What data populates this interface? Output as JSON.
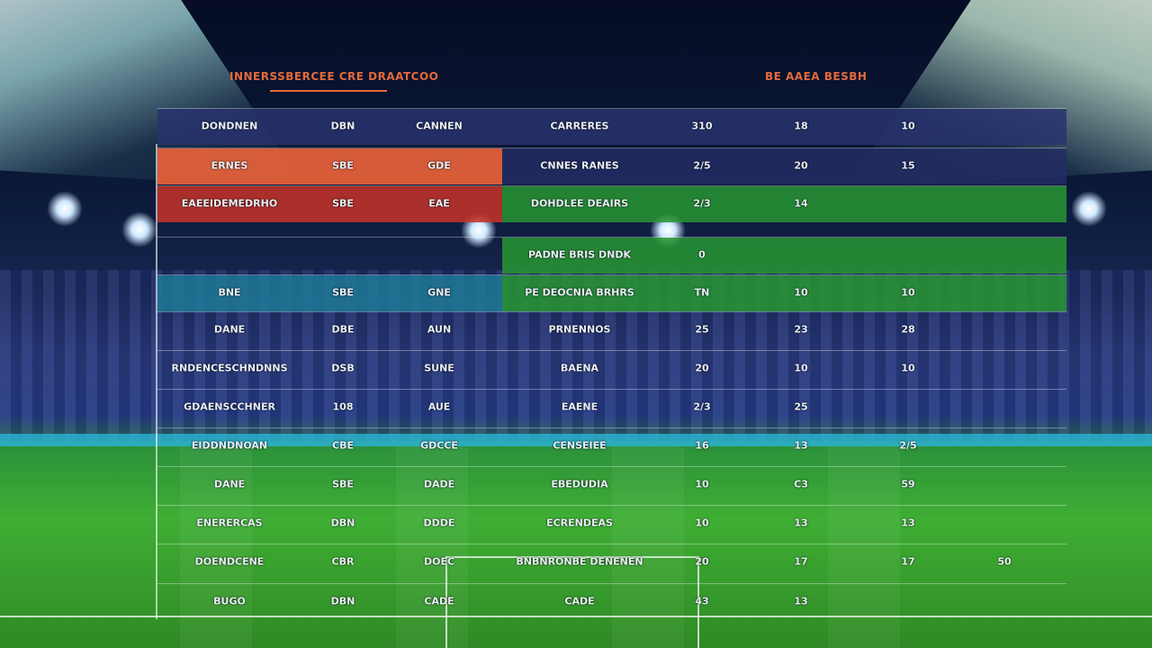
{
  "header": {
    "left_title": "INNERSSBERCEE CRE DRAATCOO",
    "right_title": "BE AAEA BESBH"
  },
  "table": {
    "rows": [
      [
        "DONDNEN",
        "DBN",
        "CANNEN",
        "CARRERES",
        "310",
        "18",
        "10"
      ],
      [
        "ERNES",
        "SBE",
        "GDE",
        "CNNES RANES",
        "2/5",
        "20",
        "15"
      ],
      [
        "EAEEIDEMEDRHO",
        "SBE",
        "EAE",
        "DOHDLEE DEAIRS",
        "2/3",
        "14",
        null
      ],
      [
        null,
        null,
        null,
        "PADNE BRIS DNDK",
        "0",
        null,
        null
      ],
      [
        "BNE",
        "SBE",
        "GNE",
        "PE DEOCNIA BRHRS",
        "TN",
        "10",
        "10"
      ],
      [
        "DANE",
        "DBE",
        "AUN",
        "PRNENNOS",
        "25",
        "23",
        "28"
      ],
      [
        "RNDENCESCHNDNNS",
        "DSB",
        "SUNE",
        "BAENA",
        "20",
        "10",
        "10"
      ],
      [
        "GDAENSCCHNER",
        "108",
        "AUE",
        "EAENE",
        "2/3",
        "25",
        null
      ],
      [
        "EIDDNDNOAN",
        "CBE",
        "GDCCE",
        "CENSEIEE",
        "16",
        "13",
        "2/5"
      ],
      [
        "DANE",
        "SBE",
        "DADE",
        "EBEDUDIA",
        "10",
        "C3",
        "59"
      ],
      [
        "ENERERCAS",
        "DBN",
        "DDDE",
        "ECRENDEAS",
        "10",
        "13",
        "13"
      ],
      [
        "DOENDCENE",
        "CBR",
        "DOEC",
        "BNBNRONBE DENENEN",
        "20",
        "17",
        "17",
        "50"
      ],
      [
        "BUGO",
        "DBN",
        "CADE",
        "CADE",
        "43",
        "13"
      ]
    ]
  }
}
